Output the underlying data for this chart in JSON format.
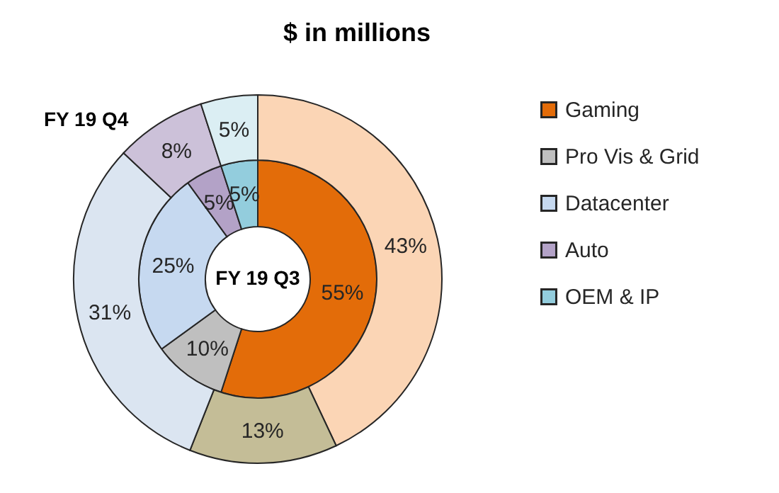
{
  "chart_data": {
    "type": "donut",
    "title": "$ in millions",
    "categories": [
      "Gaming",
      "Pro Vis & Grid",
      "Datacenter",
      "Auto",
      "OEM & IP"
    ],
    "series": [
      {
        "name": "FY 19 Q3",
        "values": [
          55,
          10,
          25,
          5,
          5
        ],
        "value_labels": [
          "55%",
          "10%",
          "25%",
          "5%",
          "5%"
        ],
        "colors": [
          "#e36c09",
          "#bfbfbf",
          "#c6d9f0",
          "#b3a2c7",
          "#93cddd"
        ]
      },
      {
        "name": "FY 19 Q4",
        "values": [
          43,
          13,
          31,
          8,
          5
        ],
        "value_labels": [
          "43%",
          "13%",
          "31%",
          "8%",
          "5%"
        ],
        "colors": [
          "#fbd5b5",
          "#c4bd97",
          "#dbe5f1",
          "#ccc1d9",
          "#dbeef3"
        ]
      }
    ],
    "legend": "right"
  }
}
